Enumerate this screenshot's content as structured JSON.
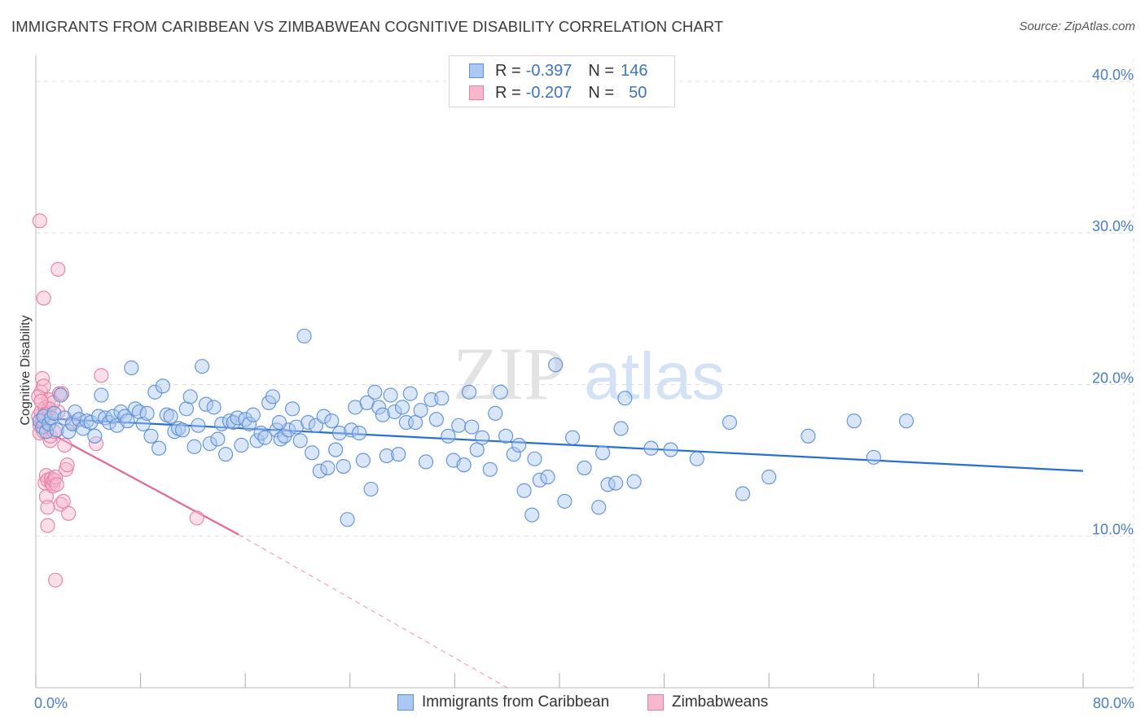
{
  "title": "IMMIGRANTS FROM CARIBBEAN VS ZIMBABWEAN COGNITIVE DISABILITY CORRELATION CHART",
  "source": "Source: ZipAtlas.com",
  "watermark": {
    "zip": "ZIP",
    "atlas": "atlas"
  },
  "legend": {
    "series1": {
      "r_label": "R =",
      "r_value": "-0.397",
      "n_label": "N =",
      "n_value": "146"
    },
    "series2": {
      "r_label": "R =",
      "r_value": "-0.207",
      "n_label": "N =",
      "n_value": "50"
    }
  },
  "colors": {
    "blue_fill": "#aac8f0",
    "blue_stroke": "#5b8fd6",
    "blue_line": "#2a6fd0",
    "pink_fill": "#f7b8cb",
    "pink_stroke": "#e97da0",
    "pink_line": "#e06892",
    "tick_text": "#4a7cc7",
    "grid": "#dddddd"
  },
  "chart_data": {
    "type": "scatter",
    "title": "IMMIGRANTS FROM CARIBBEAN VS ZIMBABWEAN COGNITIVE DISABILITY CORRELATION CHART",
    "xlabel": "",
    "ylabel": "Cognitive Disability",
    "x_tick_labels": [
      "0.0%",
      "80.0%"
    ],
    "y_tick_labels": [
      "10.0%",
      "20.0%",
      "30.0%",
      "40.0%"
    ],
    "y_ticks": [
      10,
      20,
      30,
      40
    ],
    "xlim": [
      0,
      80
    ],
    "ylim": [
      0,
      41.5
    ],
    "grid": true,
    "series": [
      {
        "name": "Immigrants from Caribbean",
        "color": "blue",
        "trend": {
          "x": [
            0,
            80
          ],
          "y": [
            17.8,
            14.3
          ],
          "style": "solid"
        },
        "points": [
          [
            0.3,
            17.6
          ],
          [
            0.5,
            17.2
          ],
          [
            0.6,
            17.9
          ],
          [
            0.8,
            16.9
          ],
          [
            1.0,
            17.4
          ],
          [
            1.2,
            17.8
          ],
          [
            1.4,
            18.1
          ],
          [
            1.6,
            17.0
          ],
          [
            1.9,
            19.3
          ],
          [
            2.2,
            17.8
          ],
          [
            2.5,
            16.9
          ],
          [
            2.8,
            17.4
          ],
          [
            3.0,
            18.2
          ],
          [
            3.3,
            17.7
          ],
          [
            3.6,
            17.1
          ],
          [
            3.9,
            17.6
          ],
          [
            4.2,
            17.5
          ],
          [
            4.5,
            16.6
          ],
          [
            4.8,
            17.9
          ],
          [
            5.0,
            19.3
          ],
          [
            5.3,
            17.8
          ],
          [
            5.6,
            17.5
          ],
          [
            5.9,
            17.9
          ],
          [
            6.2,
            17.3
          ],
          [
            6.5,
            18.2
          ],
          [
            6.8,
            17.9
          ],
          [
            7.0,
            17.6
          ],
          [
            7.3,
            21.1
          ],
          [
            7.6,
            18.4
          ],
          [
            7.9,
            18.2
          ],
          [
            8.2,
            17.4
          ],
          [
            8.5,
            18.1
          ],
          [
            8.8,
            16.6
          ],
          [
            9.1,
            19.5
          ],
          [
            9.4,
            15.8
          ],
          [
            9.7,
            19.9
          ],
          [
            10.0,
            18.0
          ],
          [
            10.3,
            17.9
          ],
          [
            10.6,
            16.9
          ],
          [
            10.9,
            17.1
          ],
          [
            11.2,
            17.0
          ],
          [
            11.5,
            18.4
          ],
          [
            11.8,
            19.2
          ],
          [
            12.1,
            15.9
          ],
          [
            12.4,
            17.3
          ],
          [
            12.7,
            21.2
          ],
          [
            13.0,
            18.7
          ],
          [
            13.3,
            16.1
          ],
          [
            13.6,
            18.5
          ],
          [
            13.9,
            16.4
          ],
          [
            14.2,
            17.4
          ],
          [
            14.5,
            15.4
          ],
          [
            14.8,
            17.6
          ],
          [
            15.1,
            17.5
          ],
          [
            15.4,
            17.8
          ],
          [
            15.7,
            16.0
          ],
          [
            16.0,
            17.7
          ],
          [
            16.3,
            17.4
          ],
          [
            16.6,
            18.0
          ],
          [
            16.9,
            16.3
          ],
          [
            17.2,
            16.8
          ],
          [
            17.5,
            16.5
          ],
          [
            17.8,
            18.8
          ],
          [
            18.1,
            19.2
          ],
          [
            18.4,
            17.0
          ],
          [
            18.7,
            16.4
          ],
          [
            19.0,
            16.6
          ],
          [
            19.3,
            17.0
          ],
          [
            19.6,
            18.4
          ],
          [
            19.9,
            17.2
          ],
          [
            20.2,
            16.3
          ],
          [
            20.5,
            23.2
          ],
          [
            20.8,
            17.5
          ],
          [
            21.1,
            15.5
          ],
          [
            21.4,
            17.3
          ],
          [
            21.7,
            14.3
          ],
          [
            22.0,
            17.9
          ],
          [
            22.3,
            14.5
          ],
          [
            22.6,
            17.6
          ],
          [
            22.9,
            15.7
          ],
          [
            23.2,
            16.8
          ],
          [
            23.5,
            14.6
          ],
          [
            23.8,
            11.1
          ],
          [
            24.1,
            17.0
          ],
          [
            24.4,
            18.5
          ],
          [
            24.7,
            16.8
          ],
          [
            25.0,
            15.0
          ],
          [
            25.3,
            18.8
          ],
          [
            25.6,
            13.1
          ],
          [
            25.9,
            19.5
          ],
          [
            26.2,
            18.5
          ],
          [
            26.5,
            18.0
          ],
          [
            26.8,
            15.3
          ],
          [
            27.1,
            19.3
          ],
          [
            27.4,
            18.2
          ],
          [
            27.7,
            15.4
          ],
          [
            28.0,
            18.5
          ],
          [
            28.3,
            17.5
          ],
          [
            28.6,
            19.4
          ],
          [
            29.0,
            17.5
          ],
          [
            29.4,
            18.3
          ],
          [
            29.8,
            14.9
          ],
          [
            30.2,
            19.0
          ],
          [
            30.6,
            17.7
          ],
          [
            31.0,
            19.1
          ],
          [
            31.5,
            16.6
          ],
          [
            31.9,
            15.0
          ],
          [
            32.3,
            17.3
          ],
          [
            32.7,
            14.7
          ],
          [
            33.1,
            19.5
          ],
          [
            33.7,
            15.7
          ],
          [
            34.1,
            16.5
          ],
          [
            34.7,
            14.4
          ],
          [
            35.1,
            18.1
          ],
          [
            35.5,
            19.5
          ],
          [
            35.9,
            16.6
          ],
          [
            36.5,
            15.4
          ],
          [
            36.9,
            16.0
          ],
          [
            37.3,
            13.0
          ],
          [
            37.9,
            11.4
          ],
          [
            38.1,
            15.1
          ],
          [
            38.5,
            13.7
          ],
          [
            39.1,
            13.9
          ],
          [
            39.7,
            21.3
          ],
          [
            40.4,
            12.3
          ],
          [
            41.0,
            16.5
          ],
          [
            41.9,
            14.5
          ],
          [
            43.0,
            11.9
          ],
          [
            43.3,
            15.5
          ],
          [
            43.7,
            13.4
          ],
          [
            44.3,
            13.5
          ],
          [
            45.0,
            19.1
          ],
          [
            45.7,
            13.6
          ],
          [
            47.0,
            15.8
          ],
          [
            48.5,
            15.7
          ],
          [
            50.5,
            15.1
          ],
          [
            53.0,
            17.5
          ],
          [
            54.0,
            12.8
          ],
          [
            56.0,
            13.9
          ],
          [
            59.0,
            16.6
          ],
          [
            62.5,
            17.6
          ],
          [
            64.0,
            15.2
          ],
          [
            66.5,
            17.6
          ],
          [
            44.7,
            17.1
          ],
          [
            33.3,
            17.2
          ],
          [
            18.6,
            17.5
          ]
        ]
      },
      {
        "name": "Zimbabweans",
        "color": "pink",
        "trend": {
          "x": [
            0,
            15.5
          ],
          "y": [
            17.3,
            10.1
          ],
          "style": "solid",
          "extension_x": [
            15.5,
            36
          ],
          "extension_y": [
            10.1,
            0
          ],
          "extension_style": "dashed"
        },
        "points": [
          [
            0.2,
            17.9
          ],
          [
            0.3,
            17.3
          ],
          [
            0.3,
            16.8
          ],
          [
            0.4,
            19.5
          ],
          [
            0.4,
            18.2
          ],
          [
            0.5,
            20.4
          ],
          [
            0.5,
            17.6
          ],
          [
            0.6,
            16.9
          ],
          [
            0.6,
            19.9
          ],
          [
            0.7,
            18.5
          ],
          [
            0.7,
            13.5
          ],
          [
            0.8,
            14.0
          ],
          [
            0.8,
            12.6
          ],
          [
            0.9,
            13.7
          ],
          [
            0.9,
            11.9
          ],
          [
            1.0,
            19.0
          ],
          [
            1.0,
            17.8
          ],
          [
            1.1,
            16.3
          ],
          [
            1.1,
            16.6
          ],
          [
            1.2,
            13.5
          ],
          [
            1.2,
            13.8
          ],
          [
            1.3,
            13.3
          ],
          [
            1.4,
            13.7
          ],
          [
            1.5,
            13.9
          ],
          [
            1.6,
            13.4
          ],
          [
            1.7,
            18.2
          ],
          [
            1.8,
            19.4
          ],
          [
            1.9,
            12.1
          ],
          [
            2.0,
            19.4
          ],
          [
            2.1,
            12.3
          ],
          [
            2.2,
            16.0
          ],
          [
            2.3,
            14.4
          ],
          [
            2.4,
            14.7
          ],
          [
            2.5,
            11.5
          ],
          [
            0.3,
            30.8
          ],
          [
            0.6,
            25.7
          ],
          [
            1.7,
            27.6
          ],
          [
            5.0,
            20.6
          ],
          [
            4.6,
            16.1
          ],
          [
            12.3,
            11.2
          ],
          [
            1.5,
            7.1
          ],
          [
            0.9,
            10.7
          ],
          [
            0.2,
            19.2
          ],
          [
            0.5,
            17.7
          ],
          [
            1.3,
            18.8
          ],
          [
            1.0,
            18.4
          ],
          [
            0.7,
            18.0
          ],
          [
            2.8,
            17.5
          ],
          [
            1.4,
            16.9
          ],
          [
            0.4,
            18.9
          ]
        ]
      }
    ]
  },
  "bottom_legend": {
    "blue_label": "Immigrants from Caribbean",
    "pink_label": "Zimbabweans"
  }
}
